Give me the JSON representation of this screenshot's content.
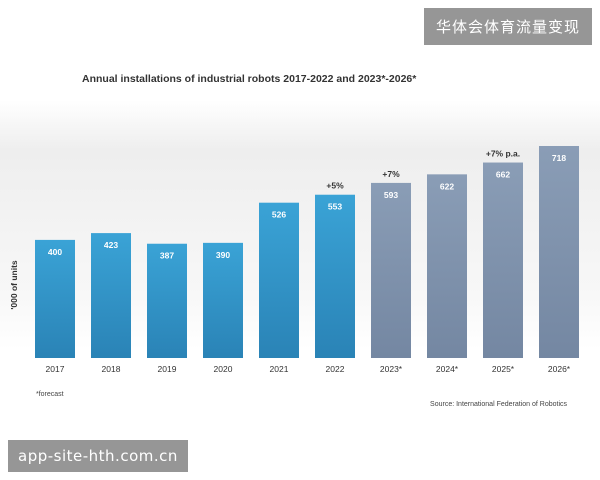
{
  "watermarks": {
    "top": "华体会体育流量变现",
    "bottom": "app-site-hth.com.cn"
  },
  "chart_data": {
    "type": "bar",
    "title": "Annual installations of industrial robots 2017-2022 and 2023*-2026*",
    "ylabel": "'000 of units",
    "xlabel": "",
    "categories": [
      "2017",
      "2018",
      "2019",
      "2020",
      "2021",
      "2022",
      "2023*",
      "2024*",
      "2025*",
      "2026*"
    ],
    "values": [
      400,
      423,
      387,
      390,
      526,
      553,
      593,
      622,
      662,
      718
    ],
    "forecast_start_index": 6,
    "ylim": [
      0,
      718
    ],
    "colors": {
      "actual": "#2e8fc2",
      "forecast": "#7f92ad"
    },
    "annotations": [
      {
        "text": "+5%",
        "category_index": 5
      },
      {
        "text": "+7%",
        "category_index": 6
      },
      {
        "text": "+7% p.a.",
        "category_index": 8
      }
    ],
    "footnote": "*forecast",
    "source": "Source: International Federation of Robotics"
  }
}
